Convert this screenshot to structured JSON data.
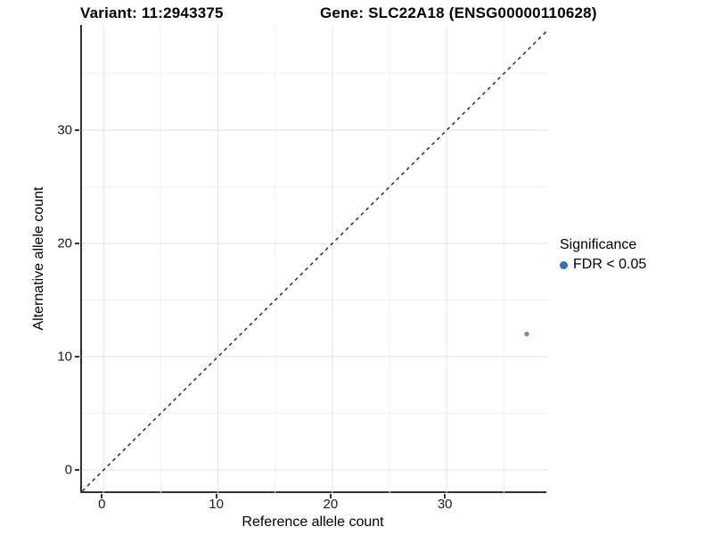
{
  "figure": {
    "title_left": "Variant: 11:2943375",
    "title_right": "Gene: SLC22A18 (ENSG00000110628)"
  },
  "chart_data": {
    "type": "scatter",
    "title": "Variant: 11:2943375   Gene: SLC22A18 (ENSG00000110628)",
    "variant": "11:2943375",
    "gene": "SLC22A18",
    "gene_id": "ENSG00000110628",
    "xlabel": "Reference allele count",
    "ylabel": "Alternative allele count",
    "xlim": [
      -1.87,
      38.9
    ],
    "ylim": [
      -2.05,
      39.3
    ],
    "x_ticks": [
      0,
      10,
      20,
      30
    ],
    "y_ticks": [
      0,
      10,
      20,
      30
    ],
    "x_minor_ticks": [
      5,
      15,
      25,
      35
    ],
    "y_minor_ticks": [
      5,
      15,
      25,
      35
    ],
    "grid": "major+minor",
    "series": [
      {
        "name": "FDR < 0.05",
        "points": [
          {
            "x": 37,
            "y": 12
          }
        ],
        "color": "#3573b2",
        "alpha": 0.78,
        "marker_radius": 2.7
      }
    ],
    "reference_line": {
      "type": "identity y=x",
      "style": "dashed",
      "color": "#222222"
    },
    "legend": {
      "title": "Significance",
      "position": "right",
      "items": [
        {
          "label": "FDR < 0.05",
          "color": "#3573b2",
          "marker": "circle"
        }
      ]
    },
    "colors": {
      "background": "#ffffff",
      "axis_line": "#333333",
      "grid_major": "#e3e3e3",
      "grid_minor": "#f0f0f0",
      "text": "#000000"
    }
  }
}
